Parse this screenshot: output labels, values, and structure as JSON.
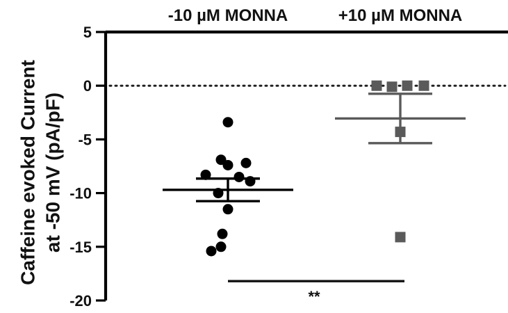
{
  "chart_data": {
    "type": "scatter",
    "title": "",
    "xlabel": "",
    "ylabel": "Caffeine evoked Current at -50 mV (pA/pF)",
    "ylabel_lines": [
      "Caffeine evoked Current",
      "at -50 mV (pA/pF)"
    ],
    "ylim": [
      -20,
      5
    ],
    "y_ticks": [
      5,
      0,
      -5,
      -10,
      -15,
      -20
    ],
    "y_tick_labels": [
      "5",
      "0",
      "-5",
      "-10",
      "-15",
      "-20"
    ],
    "categories": [
      "-10 µM MONNA",
      "+10 µM MONNA"
    ],
    "reference_line": {
      "y": 0,
      "style": "dotted"
    },
    "grid": false,
    "legend": "none",
    "series": [
      {
        "category": "-10 µM MONNA",
        "marker": "circle",
        "color": "#000000",
        "values": [
          -3.4,
          -6.9,
          -7.2,
          -7.4,
          -8.3,
          -8.5,
          -8.9,
          -10.0,
          -11.5,
          -13.8,
          -15.0,
          -15.4
        ],
        "mean": -9.7,
        "sem": 1.05
      },
      {
        "category": "+10 µM MONNA",
        "marker": "square",
        "color": "#5a5a5a",
        "values": [
          0.0,
          -0.1,
          0.0,
          0.0,
          -4.3,
          -14.1
        ],
        "mean": -3.05,
        "sem": 2.3
      }
    ],
    "annotations": [
      {
        "text": "**",
        "type": "significance",
        "between": [
          "-10 µM MONNA",
          "+10 µM MONNA"
        ],
        "y": -18.2
      }
    ]
  }
}
